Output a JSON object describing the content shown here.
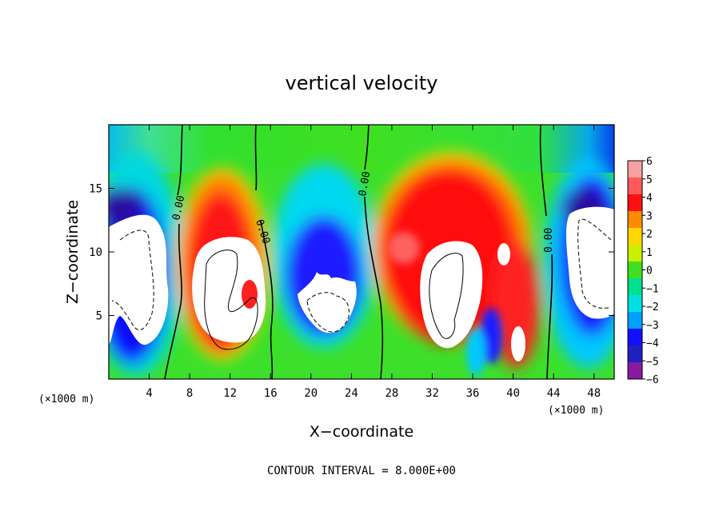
{
  "chart_data": {
    "type": "heatmap",
    "title": "vertical velocity",
    "xlabel": "X−coordinate",
    "ylabel": "Z−coordinate",
    "x_unit": "(×1000 m)",
    "y_unit": "(×1000 m)",
    "xlim": [
      0,
      50
    ],
    "ylim": [
      0,
      20
    ],
    "x_ticks": [
      4,
      8,
      12,
      16,
      20,
      24,
      28,
      32,
      36,
      40,
      44,
      48
    ],
    "x_tick_labels": [
      "4",
      "8",
      "12",
      "16",
      "20",
      "24",
      "28",
      "32",
      "36",
      "40",
      "44",
      "48"
    ],
    "y_ticks": [
      5,
      10,
      15
    ],
    "y_tick_labels": [
      "5",
      "10",
      "15"
    ],
    "colorbar": {
      "levels": [
        6,
        5,
        4,
        3,
        2,
        1,
        0,
        -1,
        -2,
        -3,
        -4,
        -5,
        -6
      ],
      "labels": [
        "6",
        "5",
        "4",
        "3",
        "2",
        "1",
        "0",
        "−1",
        "−2",
        "−3",
        "−4",
        "−5",
        "−6"
      ],
      "colors": [
        "#f7a0a0",
        "#ff5a5a",
        "#ff1010",
        "#ff8c00",
        "#ffd700",
        "#c8f000",
        "#40e020",
        "#00e090",
        "#00e0e0",
        "#00a0ff",
        "#1010ff",
        "#2020c0",
        "#8a1aa0"
      ],
      "range": [
        -6,
        6
      ]
    },
    "contour_labels": [
      "0.00",
      "0.00",
      "0.00",
      "0.00"
    ],
    "footer": "CONTOUR INTERVAL = 8.000E+00"
  }
}
